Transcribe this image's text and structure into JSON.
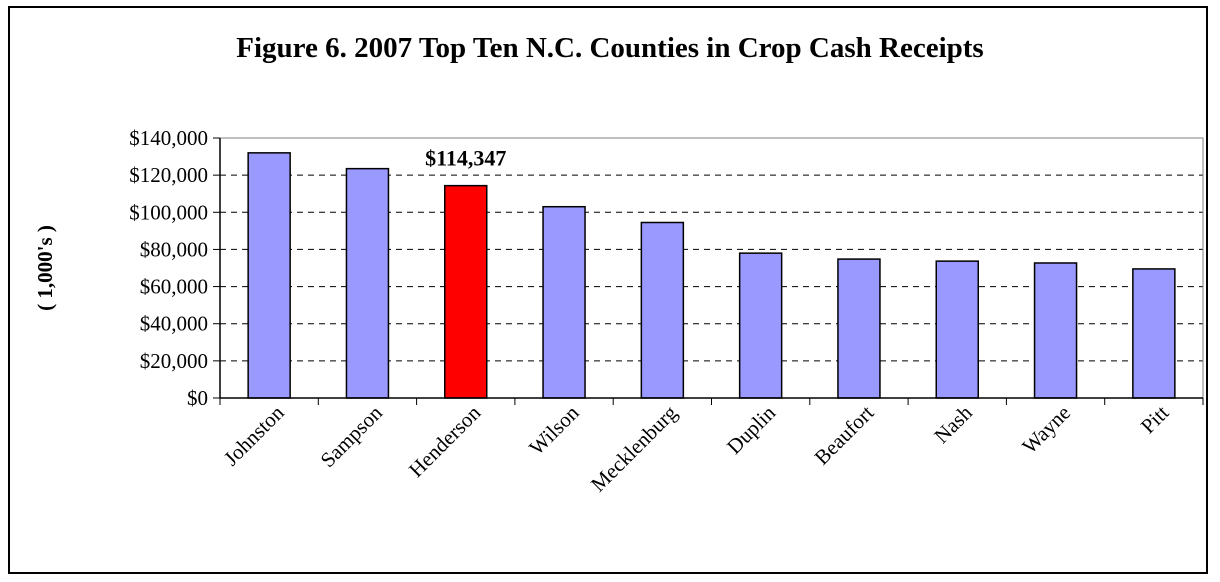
{
  "chart_data": {
    "type": "bar",
    "title": "Figure 6. 2007 Top Ten N.C. Counties in Crop Cash Receipts",
    "xlabel": "",
    "ylabel": "( 1,000's )",
    "categories": [
      "Johnston",
      "Sampson",
      "Henderson",
      "Wilson",
      "Mecklenburg",
      "Duplin",
      "Beaufort",
      "Nash",
      "Wayne",
      "Pitt"
    ],
    "values": [
      132000,
      123500,
      114347,
      103000,
      94500,
      78000,
      74800,
      73700,
      72700,
      69500
    ],
    "highlight_index": 2,
    "highlight_label": "$114,347",
    "ylim": [
      0,
      140000
    ],
    "yticks": [
      0,
      20000,
      40000,
      60000,
      80000,
      100000,
      120000,
      140000
    ],
    "ytick_labels": [
      "$0",
      "$20,000",
      "$40,000",
      "$60,000",
      "$80,000",
      "$100,000",
      "$120,000",
      "$140,000"
    ],
    "grid": "horizontal dashed",
    "legend": "none",
    "colors": {
      "bar": "#9999ff",
      "highlight": "#ff0000",
      "edge": "#000000",
      "grid": "#000000"
    }
  }
}
